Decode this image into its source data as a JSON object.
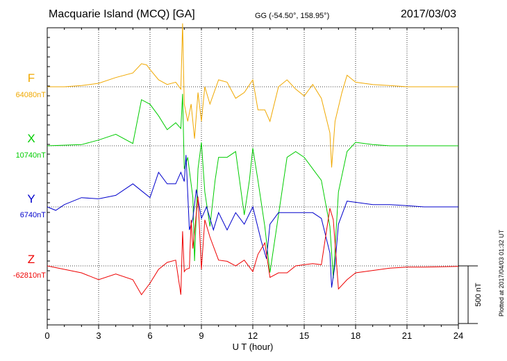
{
  "header": {
    "station": "Macquarie Island (MCQ)  [GA]",
    "coords": "GG (-54.50°, 158.95°)",
    "date": "2017/03/03"
  },
  "plotted_note": "Plotted at 2017/04/03 01:32 UT",
  "chart_data": {
    "type": "line",
    "xlabel": "U T (hour)",
    "x_ticks": [
      "0",
      "3",
      "6",
      "9",
      "12",
      "15",
      "18",
      "21",
      "24"
    ],
    "xlim": [
      0,
      24
    ],
    "scale_bar_label": "500 nT",
    "scale_bar_nT": 500,
    "series": [
      {
        "name": "F",
        "baseline_label": "64080nT",
        "baseline_nT": 64080,
        "color": "#f0a800",
        "points": [
          [
            0,
            0
          ],
          [
            1,
            0
          ],
          [
            2,
            10
          ],
          [
            3,
            30
          ],
          [
            4,
            80
          ],
          [
            5,
            120
          ],
          [
            5.5,
            200
          ],
          [
            5.8,
            190
          ],
          [
            6,
            150
          ],
          [
            6.5,
            60
          ],
          [
            7,
            20
          ],
          [
            7.5,
            40
          ],
          [
            7.8,
            -20
          ],
          [
            7.9,
            550
          ],
          [
            8.0,
            -150
          ],
          [
            8.2,
            -300
          ],
          [
            8.4,
            -150
          ],
          [
            8.6,
            -450
          ],
          [
            8.8,
            -50
          ],
          [
            9.0,
            -300
          ],
          [
            9.2,
            0
          ],
          [
            9.5,
            -150
          ],
          [
            10,
            60
          ],
          [
            10.5,
            40
          ],
          [
            11,
            -100
          ],
          [
            11.5,
            -50
          ],
          [
            12,
            60
          ],
          [
            12.3,
            -200
          ],
          [
            12.7,
            -200
          ],
          [
            13,
            -300
          ],
          [
            13.5,
            0
          ],
          [
            14,
            60
          ],
          [
            14.5,
            -20
          ],
          [
            15,
            -80
          ],
          [
            15.5,
            20
          ],
          [
            16,
            -100
          ],
          [
            16.5,
            -400
          ],
          [
            16.6,
            -700
          ],
          [
            16.8,
            -300
          ],
          [
            17.2,
            -50
          ],
          [
            17.5,
            100
          ],
          [
            18,
            40
          ],
          [
            19,
            20
          ],
          [
            20,
            10
          ],
          [
            21,
            0
          ],
          [
            22,
            0
          ],
          [
            24,
            0
          ]
        ]
      },
      {
        "name": "X",
        "baseline_label": "10740nT",
        "baseline_nT": 10740,
        "color": "#00cc00",
        "points": [
          [
            0,
            0
          ],
          [
            2,
            10
          ],
          [
            3,
            50
          ],
          [
            4,
            100
          ],
          [
            5,
            20
          ],
          [
            5.5,
            400
          ],
          [
            6,
            360
          ],
          [
            6.5,
            260
          ],
          [
            7,
            140
          ],
          [
            7.5,
            200
          ],
          [
            7.8,
            150
          ],
          [
            7.9,
            450
          ],
          [
            8,
            -200
          ],
          [
            8.2,
            -100
          ],
          [
            8.5,
            -450
          ],
          [
            8.6,
            -1000
          ],
          [
            8.8,
            -200
          ],
          [
            9.0,
            30
          ],
          [
            9.2,
            -400
          ],
          [
            9.5,
            -700
          ],
          [
            9.8,
            -300
          ],
          [
            10,
            -100
          ],
          [
            10.5,
            -100
          ],
          [
            11,
            -50
          ],
          [
            11.5,
            -600
          ],
          [
            11.8,
            -300
          ],
          [
            12,
            -20
          ],
          [
            12.3,
            -300
          ],
          [
            12.7,
            -700
          ],
          [
            13,
            -1100
          ],
          [
            13.5,
            -600
          ],
          [
            14,
            -100
          ],
          [
            14.5,
            -50
          ],
          [
            15,
            -100
          ],
          [
            15.5,
            -200
          ],
          [
            16,
            -300
          ],
          [
            16.5,
            -700
          ],
          [
            16.7,
            -1150
          ],
          [
            17,
            -400
          ],
          [
            17.5,
            -50
          ],
          [
            18,
            30
          ],
          [
            19,
            10
          ],
          [
            20,
            0
          ],
          [
            21,
            0
          ],
          [
            24,
            0
          ]
        ]
      },
      {
        "name": "Y",
        "baseline_label": "6740nT",
        "baseline_nT": 6740,
        "color": "#0000cc",
        "points": [
          [
            0,
            0
          ],
          [
            0.5,
            -30
          ],
          [
            1,
            20
          ],
          [
            2,
            80
          ],
          [
            3,
            70
          ],
          [
            4,
            100
          ],
          [
            5,
            200
          ],
          [
            5.5,
            140
          ],
          [
            6,
            80
          ],
          [
            6.5,
            300
          ],
          [
            7,
            200
          ],
          [
            7.5,
            200
          ],
          [
            7.8,
            300
          ],
          [
            8,
            220
          ],
          [
            8.1,
            450
          ],
          [
            8.3,
            -200
          ],
          [
            8.5,
            -100
          ],
          [
            8.7,
            150
          ],
          [
            9,
            -100
          ],
          [
            9.3,
            0
          ],
          [
            9.7,
            -200
          ],
          [
            10,
            -50
          ],
          [
            10.5,
            -200
          ],
          [
            11,
            -50
          ],
          [
            11.5,
            -150
          ],
          [
            12,
            0
          ],
          [
            12.5,
            -300
          ],
          [
            12.8,
            -450
          ],
          [
            13,
            -150
          ],
          [
            13.5,
            -50
          ],
          [
            14,
            -50
          ],
          [
            14.5,
            -50
          ],
          [
            15,
            -50
          ],
          [
            15.5,
            -50
          ],
          [
            16,
            -100
          ],
          [
            16.5,
            -400
          ],
          [
            16.6,
            -700
          ],
          [
            16.8,
            -500
          ],
          [
            17,
            -150
          ],
          [
            17.5,
            50
          ],
          [
            18,
            40
          ],
          [
            19,
            20
          ],
          [
            20,
            20
          ],
          [
            21,
            10
          ],
          [
            22,
            0
          ],
          [
            24,
            0
          ]
        ]
      },
      {
        "name": "Z",
        "baseline_label": "-62810nT",
        "baseline_nT": -62810,
        "color": "#ee0000",
        "points": [
          [
            0,
            0
          ],
          [
            1,
            -30
          ],
          [
            2,
            -60
          ],
          [
            3,
            -120
          ],
          [
            4,
            -70
          ],
          [
            5,
            -120
          ],
          [
            5.5,
            -250
          ],
          [
            6,
            -150
          ],
          [
            6.5,
            -30
          ],
          [
            7,
            30
          ],
          [
            7.5,
            50
          ],
          [
            7.8,
            -250
          ],
          [
            7.9,
            300
          ],
          [
            8,
            -50
          ],
          [
            8.1,
            -30
          ],
          [
            8.3,
            -20
          ],
          [
            8.4,
            400
          ],
          [
            8.5,
            150
          ],
          [
            8.8,
            600
          ],
          [
            9,
            -30
          ],
          [
            9.2,
            400
          ],
          [
            9.5,
            250
          ],
          [
            10,
            50
          ],
          [
            10.5,
            40
          ],
          [
            11,
            0
          ],
          [
            11.5,
            50
          ],
          [
            12,
            -50
          ],
          [
            12.3,
            100
          ],
          [
            12.7,
            200
          ],
          [
            13,
            -100
          ],
          [
            13.5,
            -60
          ],
          [
            14,
            -60
          ],
          [
            14.5,
            0
          ],
          [
            15,
            10
          ],
          [
            15.5,
            20
          ],
          [
            16,
            10
          ],
          [
            16.5,
            500
          ],
          [
            16.7,
            400
          ],
          [
            17,
            -200
          ],
          [
            17.5,
            -120
          ],
          [
            18,
            -60
          ],
          [
            19,
            -40
          ],
          [
            20,
            -20
          ],
          [
            21,
            -10
          ],
          [
            22,
            -10
          ],
          [
            24,
            -5
          ]
        ]
      }
    ]
  }
}
